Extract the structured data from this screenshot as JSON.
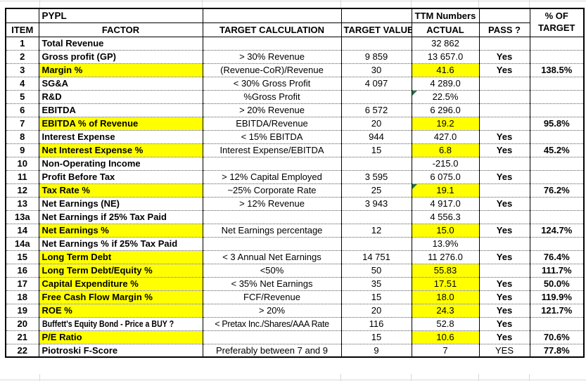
{
  "sheet": {
    "ticker": "PYPL",
    "colors": {
      "highlight": "#ffff00",
      "comment_indicator": "#217346",
      "grid": "#000000"
    },
    "headers": {
      "item": "ITEM",
      "factor": "FACTOR",
      "calc": "TARGET CALCULATION",
      "target": "TARGET VALUE",
      "ttm": "TTM Numbers",
      "actual": "ACTUAL",
      "pass": "PASS ?",
      "pct_line1": "% OF",
      "pct_line2": "TARGET"
    },
    "rows": [
      {
        "item": "1",
        "factor": "Total Revenue",
        "calc": "",
        "target": "",
        "actual": "32 862",
        "pass": "",
        "pct": ""
      },
      {
        "item": "2",
        "factor": "Gross profit (GP)",
        "calc": "> 30% Revenue",
        "target": "9 859",
        "actual": "13 657.0",
        "pass": "Yes",
        "pct": ""
      },
      {
        "item": "3",
        "factor": "Margin %",
        "calc": "(Revenue-CoR)/Revenue",
        "target": "30",
        "actual": "41.6",
        "pass": "Yes",
        "pct": "138.5%",
        "factor_hl": true,
        "actual_hl": true
      },
      {
        "item": "4",
        "factor": "SG&A",
        "calc": "< 30% Gross Profit",
        "target": "4 097",
        "actual": "4 289.0",
        "pass": "",
        "pct": ""
      },
      {
        "item": "5",
        "factor": "R&D",
        "calc": "%Gross Profit",
        "target": "",
        "actual": "22.5%",
        "pass": "",
        "pct": "",
        "comment": true
      },
      {
        "item": "6",
        "factor": "EBITDA",
        "calc": "> 20% Revenue",
        "target": "6 572",
        "actual": "6 296.0",
        "pass": "",
        "pct": ""
      },
      {
        "item": "7",
        "factor": "EBITDA % of Revenue",
        "calc": "EBITDA/Revenue",
        "target": "20",
        "actual": "19.2",
        "pass": "",
        "pct": "95.8%",
        "factor_hl": true,
        "actual_hl": true
      },
      {
        "item": "8",
        "factor": "Interest Expense",
        "calc": "< 15% EBITDA",
        "target": "944",
        "actual": "427.0",
        "pass": "Yes",
        "pct": ""
      },
      {
        "item": "9",
        "factor": "Net Interest Expense %",
        "calc": "Interest Expense/EBITDA",
        "target": "15",
        "actual": "6.8",
        "pass": "Yes",
        "pct": "45.2%",
        "factor_hl": true,
        "actual_hl": true
      },
      {
        "item": "10",
        "factor": "Non-Operating Income",
        "calc": "",
        "target": "",
        "actual": "-215.0",
        "pass": "",
        "pct": ""
      },
      {
        "item": "11",
        "factor": "Profit Before Tax",
        "calc": "> 12% Capital Employed",
        "target": "3 595",
        "actual": "6 075.0",
        "pass": "Yes",
        "pct": ""
      },
      {
        "item": "12",
        "factor": "Tax Rate %",
        "calc": "~25% Corporate Rate",
        "target": "25",
        "actual": "19.1",
        "pass": "",
        "pct": "76.2%",
        "factor_hl": true,
        "actual_hl": true,
        "comment": true
      },
      {
        "item": "13",
        "factor": "Net Earnings (NE)",
        "calc": "> 12% Revenue",
        "target": "3 943",
        "actual": "4 917.0",
        "pass": "Yes",
        "pct": ""
      },
      {
        "item": "13a",
        "factor": "Net Earnings if 25% Tax Paid",
        "calc": "",
        "target": "",
        "actual": "4 556.3",
        "pass": "",
        "pct": ""
      },
      {
        "item": "14",
        "factor": "Net Earnings %",
        "calc": "Net Earnings percentage",
        "target": "12",
        "actual": "15.0",
        "pass": "Yes",
        "pct": "124.7%",
        "factor_hl": true,
        "actual_hl": true
      },
      {
        "item": "14a",
        "factor": "Net Earnings % if 25% Tax Paid",
        "calc": "",
        "target": "",
        "actual": "13.9%",
        "pass": "",
        "pct": ""
      },
      {
        "item": "15",
        "factor": "Long Term Debt",
        "calc": "< 3 Annual Net Earnings",
        "target": "14 751",
        "actual": "11 276.0",
        "pass": "Yes",
        "pct": "76.4%",
        "factor_hl": true
      },
      {
        "item": "16",
        "factor": "Long Term Debt/Equity %",
        "calc": "<50%",
        "target": "50",
        "actual": "55.83",
        "pass": "",
        "pct": "111.7%",
        "factor_hl": true,
        "actual_hl": true
      },
      {
        "item": "17",
        "factor": "Capital Expenditure %",
        "calc": "< 35% Net Earnings",
        "target": "35",
        "actual": "17.51",
        "pass": "Yes",
        "pct": "50.0%",
        "factor_hl": true,
        "actual_hl": true
      },
      {
        "item": "18",
        "factor": "Free Cash Flow Margin %",
        "calc": "FCF/Revenue",
        "target": "15",
        "actual": "18.0",
        "pass": "Yes",
        "pct": "119.9%",
        "factor_hl": true,
        "actual_hl": true
      },
      {
        "item": "19",
        "factor": "ROE %",
        "calc": "> 20%",
        "target": "20",
        "actual": "24.3",
        "pass": "Yes",
        "pct": "121.7%",
        "factor_hl": true,
        "actual_hl": true
      },
      {
        "item": "20",
        "factor": "Buffett's Equity Bond - Price a BUY ?",
        "calc": "< Pretax Inc./Shares/AAA Rate",
        "target": "116",
        "actual": "52.8",
        "pass": "Yes",
        "pct": "",
        "narrow": true,
        "calc_narrow": true
      },
      {
        "item": "21",
        "factor": "P/E Ratio",
        "calc": "",
        "target": "15",
        "actual": "10.6",
        "pass": "Yes",
        "pct": "70.6%",
        "factor_hl": true,
        "actual_hl": true
      },
      {
        "item": "22",
        "factor": "Piotroski F-Score",
        "calc": "Preferably between 7 and 9",
        "target": "9",
        "actual": "7",
        "pass": "YES",
        "pct": "77.8%",
        "pass_plain": true
      }
    ]
  }
}
